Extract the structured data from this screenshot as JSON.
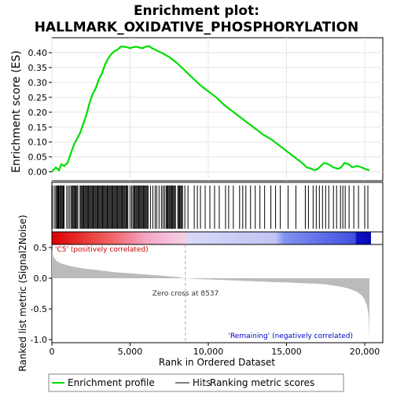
{
  "title_line1": "Enrichment plot:",
  "title_line2": "HALLMARK_OXIDATIVE_PHOSPHORYLATION",
  "colors": {
    "enrichment": "#00dd00",
    "hits": "#000000",
    "metric_fill": "#bbbbbb",
    "positive_label": "#cc0000",
    "negative_label": "#0000cc",
    "zero_line": "#aaaaaa"
  },
  "chart_data": [
    {
      "type": "line",
      "panel": "enrichment",
      "ylabel": "Enrichment score (ES)",
      "xlim": [
        0,
        20400
      ],
      "ylim": [
        -0.03,
        0.45
      ],
      "yticks": [
        "0.00",
        "0.05",
        "0.10",
        "0.15",
        "0.20",
        "0.25",
        "0.30",
        "0.35",
        "0.40"
      ],
      "grid": true,
      "series": [
        {
          "name": "Enrichment profile",
          "x": [
            0,
            250,
            450,
            600,
            800,
            1000,
            1200,
            1400,
            1600,
            1800,
            2000,
            2200,
            2400,
            2600,
            2800,
            3000,
            3200,
            3400,
            3600,
            3800,
            4000,
            4200,
            4400,
            4600,
            4800,
            5000,
            5200,
            5400,
            5600,
            5800,
            6000,
            6200,
            6400,
            6600,
            6800,
            7000,
            7500,
            8000,
            8500,
            9000,
            9500,
            10000,
            10500,
            11000,
            11500,
            12000,
            12500,
            13000,
            13500,
            14000,
            14500,
            15000,
            15500,
            16000,
            16300,
            16600,
            16800,
            17000,
            17200,
            17400,
            17700,
            18000,
            18300,
            18500,
            18700,
            19000,
            19200,
            19500,
            19800,
            20000,
            20300
          ],
          "values": [
            0.0,
            0.015,
            0.005,
            0.025,
            0.02,
            0.03,
            0.06,
            0.09,
            0.11,
            0.13,
            0.16,
            0.19,
            0.23,
            0.26,
            0.28,
            0.31,
            0.33,
            0.36,
            0.38,
            0.395,
            0.405,
            0.41,
            0.42,
            0.42,
            0.418,
            0.415,
            0.418,
            0.42,
            0.417,
            0.415,
            0.42,
            0.422,
            0.415,
            0.41,
            0.405,
            0.4,
            0.385,
            0.365,
            0.34,
            0.315,
            0.29,
            0.27,
            0.25,
            0.225,
            0.205,
            0.185,
            0.165,
            0.145,
            0.125,
            0.11,
            0.09,
            0.07,
            0.05,
            0.03,
            0.015,
            0.01,
            0.005,
            0.01,
            0.02,
            0.03,
            0.025,
            0.015,
            0.01,
            0.015,
            0.03,
            0.025,
            0.015,
            0.02,
            0.015,
            0.01,
            0.005
          ]
        }
      ]
    },
    {
      "type": "area",
      "panel": "ranked_metric",
      "xlabel": "Rank in Ordered Dataset",
      "ylabel": "Ranked list metric (Signal2Noise)",
      "xlim": [
        0,
        20400
      ],
      "ylim": [
        -1.05,
        0.55
      ],
      "xticks": [
        "0",
        "5,000",
        "10,000",
        "15,000",
        "20,000"
      ],
      "yticks": [
        "0.5",
        "0.0",
        "-0.5",
        "-1.0"
      ],
      "series": [
        {
          "name": "Ranking metric scores",
          "x": [
            0,
            100,
            300,
            600,
            1000,
            1500,
            2000,
            3000,
            4000,
            5000,
            6000,
            7000,
            8000,
            8537,
            9000,
            10000,
            11000,
            12000,
            13000,
            14000,
            15000,
            16000,
            17000,
            17500,
            18000,
            18500,
            19000,
            19500,
            19800,
            20000,
            20150,
            20250,
            20300
          ],
          "values": [
            0.45,
            0.35,
            0.28,
            0.24,
            0.21,
            0.18,
            0.16,
            0.13,
            0.1,
            0.08,
            0.06,
            0.04,
            0.02,
            0.0,
            -0.01,
            -0.02,
            -0.03,
            -0.04,
            -0.05,
            -0.06,
            -0.07,
            -0.08,
            -0.09,
            -0.1,
            -0.12,
            -0.14,
            -0.17,
            -0.22,
            -0.28,
            -0.35,
            -0.45,
            -0.6,
            -1.0
          ]
        }
      ],
      "annotations": {
        "zero_cross": "Zero cross at 8537",
        "positive": "'C5' (positively correlated)",
        "negative": "'Remaining' (negatively correlated)"
      },
      "zero_cross_rank": 8537
    }
  ],
  "hits": {
    "dense_segments": [
      [
        250,
        750
      ],
      [
        1300,
        1700
      ],
      [
        1800,
        4900
      ],
      [
        5250,
        6200
      ],
      [
        7300,
        7900
      ],
      [
        8050,
        8350
      ]
    ],
    "sparse": [
      30,
      150,
      400,
      600,
      780,
      950,
      1050,
      1150,
      1250,
      5000,
      5100,
      5180,
      6300,
      6450,
      6600,
      6700,
      6850,
      7000,
      7100,
      7200,
      8500,
      8700,
      9100,
      9300,
      9500,
      9800,
      10100,
      10400,
      10700,
      11100,
      11300,
      11600,
      12000,
      12200,
      12400,
      12700,
      13000,
      13300,
      13600,
      14000,
      14300,
      14600,
      15100,
      15600,
      16200,
      16400,
      16700,
      16900,
      17100,
      17300,
      17500,
      17700,
      18000,
      18200,
      18450,
      18600,
      18750,
      19000,
      19300,
      19600,
      20000,
      20200
    ]
  },
  "legend": {
    "items": [
      "Enrichment profile",
      "Hits",
      "Ranking metric scores"
    ]
  }
}
